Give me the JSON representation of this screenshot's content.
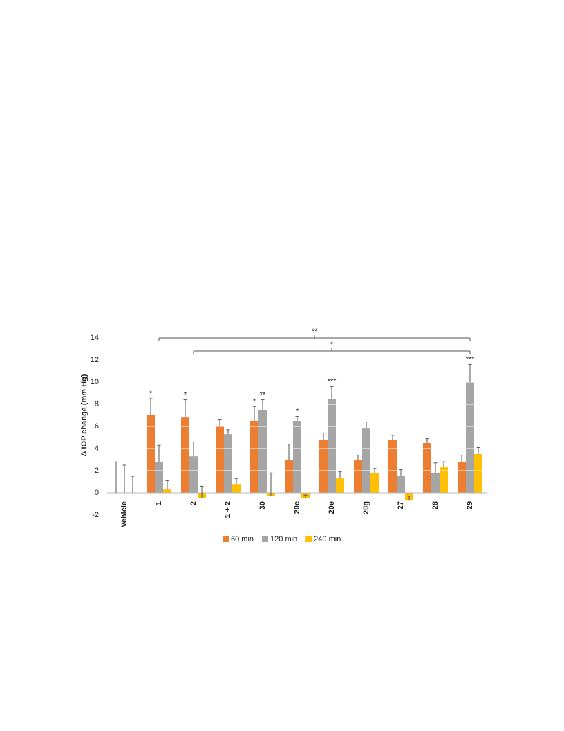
{
  "chart_data": {
    "type": "bar",
    "y_label": "Δ IOP change (mm Hg)",
    "categories": [
      "Vehicle",
      "1",
      "2",
      "1 + 2",
      "30",
      "20c",
      "20e",
      "20g",
      "27",
      "28",
      "29"
    ],
    "series": [
      {
        "name": "60 min",
        "color": "#ed7d31",
        "values": [
          0,
          7.0,
          6.8,
          6.0,
          6.5,
          3.0,
          4.8,
          3.0,
          4.8,
          4.5,
          2.8
        ],
        "errors": [
          2.8,
          1.5,
          1.6,
          0.6,
          1.3,
          1.4,
          0.6,
          0.4,
          0.4,
          0.4,
          0.6
        ],
        "significance": [
          null,
          "*",
          "*",
          null,
          "*",
          null,
          null,
          null,
          null,
          null,
          null
        ]
      },
      {
        "name": "120 min",
        "color": "#a5a5a5",
        "values": [
          0,
          2.8,
          3.3,
          5.3,
          7.5,
          6.5,
          8.5,
          5.8,
          1.5,
          1.8,
          10.0
        ],
        "errors": [
          2.5,
          1.5,
          1.3,
          0.4,
          0.9,
          0.4,
          1.1,
          0.6,
          0.6,
          0.9,
          1.6
        ],
        "significance": [
          null,
          null,
          null,
          null,
          "**",
          "*",
          "***",
          null,
          null,
          null,
          "***"
        ]
      },
      {
        "name": "240 min",
        "color": "#ffc000",
        "values": [
          0,
          0.3,
          -0.5,
          0.8,
          -0.3,
          -0.5,
          1.3,
          1.8,
          -0.7,
          2.3,
          3.5
        ],
        "errors": [
          1.5,
          0.8,
          1.1,
          0.5,
          2.1,
          0.3,
          0.6,
          0.4,
          0.4,
          0.5,
          0.6
        ],
        "significance": [
          null,
          null,
          null,
          null,
          null,
          null,
          null,
          null,
          null,
          null,
          null
        ]
      }
    ],
    "brackets": [
      {
        "categories": [
          1,
          10
        ],
        "label": "**"
      },
      {
        "categories": [
          2,
          10
        ],
        "label": "*"
      }
    ],
    "ylim": [
      -2,
      14
    ],
    "yticks": [
      -2,
      0,
      2,
      4,
      6,
      8,
      10,
      12,
      14
    ],
    "grid": true,
    "grid_color": "#ffffff",
    "legend": "bottom"
  }
}
